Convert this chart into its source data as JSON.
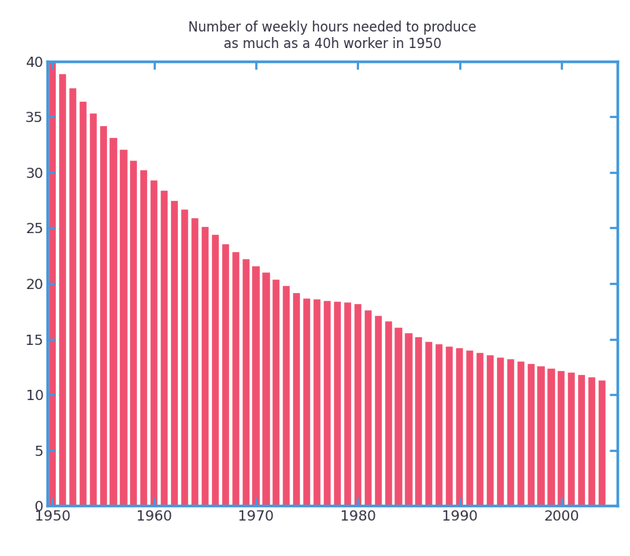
{
  "title": "Number of weekly hours needed to produce\nas much as a 40h worker in 1950",
  "years": [
    1950,
    1951,
    1952,
    1953,
    1954,
    1955,
    1956,
    1957,
    1958,
    1959,
    1960,
    1961,
    1962,
    1963,
    1964,
    1965,
    1966,
    1967,
    1968,
    1969,
    1970,
    1971,
    1972,
    1973,
    1974,
    1975,
    1976,
    1977,
    1978,
    1979,
    1980,
    1981,
    1982,
    1983,
    1984,
    1985,
    1986,
    1987,
    1988,
    1989,
    1990,
    1991,
    1992,
    1993,
    1994,
    1995,
    1996,
    1997,
    1998,
    1999,
    2000,
    2001,
    2002,
    2003,
    2004
  ],
  "values": [
    40.0,
    38.8,
    37.5,
    36.3,
    35.2,
    34.1,
    33.0,
    32.0,
    31.0,
    30.1,
    29.2,
    28.3,
    27.4,
    26.6,
    25.8,
    25.0,
    24.3,
    23.5,
    22.8,
    22.1,
    21.5,
    20.9,
    20.3,
    19.7,
    19.1,
    18.6,
    18.5,
    18.4,
    18.3,
    18.2,
    18.1,
    17.5,
    17.0,
    16.5,
    16.0,
    15.5,
    15.1,
    14.7,
    14.5,
    14.3,
    14.1,
    13.9,
    13.7,
    13.5,
    13.3,
    13.1,
    12.9,
    12.7,
    12.5,
    12.3,
    12.1,
    11.9,
    11.7,
    11.5,
    11.2
  ],
  "bar_color": "#F05070",
  "bar_edge_color": "#F05070",
  "spine_color": "#4499DD",
  "tick_color": "#4499DD",
  "title_color": "#333344",
  "label_color": "#333344",
  "xlim": [
    1949.5,
    2005.5
  ],
  "ylim": [
    0,
    40
  ],
  "yticks": [
    0,
    5,
    10,
    15,
    20,
    25,
    30,
    35,
    40
  ],
  "xticks": [
    1950,
    1960,
    1970,
    1980,
    1990,
    2000
  ],
  "title_fontsize": 12,
  "tick_fontsize": 13,
  "background_color": "#FFFFFF",
  "bar_width": 0.55,
  "bar_linewidth": 1.2
}
